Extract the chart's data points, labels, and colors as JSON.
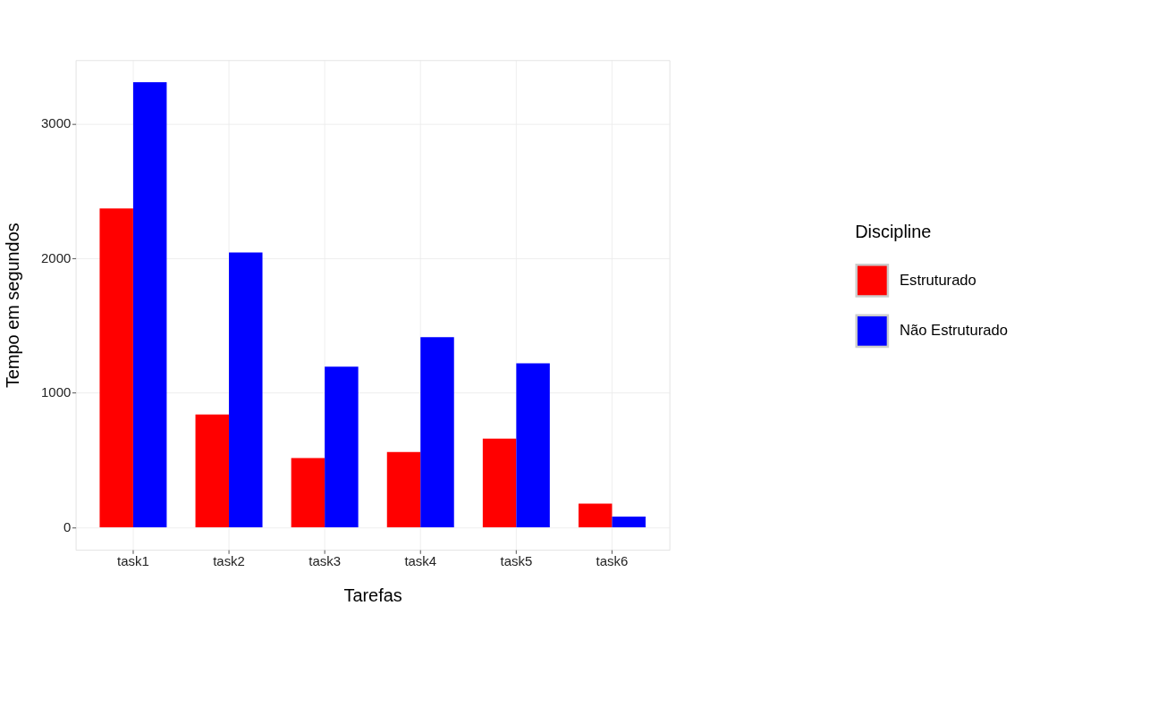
{
  "chart_data": {
    "type": "bar",
    "xlabel": "Tarefas",
    "ylabel": "Tempo em segundos",
    "legend_title": "Discipline",
    "categories": [
      "task1",
      "task2",
      "task3",
      "task4",
      "task5",
      "task6"
    ],
    "series": [
      {
        "name": "Estruturado",
        "color": "#ff0000",
        "values": [
          2370,
          840,
          516,
          560,
          660,
          177
        ]
      },
      {
        "name": "Não Estruturado",
        "color": "#0000ff",
        "values": [
          3310,
          2043,
          1194,
          1414,
          1220,
          81
        ]
      }
    ],
    "ylim": [
      -167,
      3473
    ],
    "yticks": [
      0,
      1000,
      2000,
      3000
    ],
    "grid": true,
    "legend": "right"
  }
}
